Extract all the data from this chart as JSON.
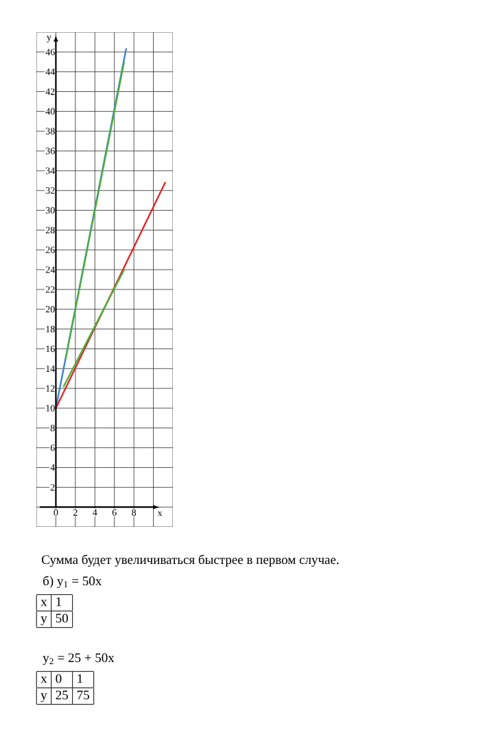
{
  "chart_data": {
    "type": "line",
    "xlabel": "x",
    "ylabel": "y",
    "xlim": [
      -2,
      12
    ],
    "ylim": [
      -2,
      48
    ],
    "xticks": [
      0,
      2,
      4,
      6,
      8,
      {
        "value": 10,
        "label": null
      }
    ],
    "yticks": [
      {
        "value": 0,
        "label": null
      },
      2,
      4,
      6,
      8,
      10,
      12,
      14,
      16,
      18,
      20,
      22,
      24,
      26,
      28,
      30,
      32,
      34,
      36,
      38,
      40,
      42,
      44,
      46
    ],
    "grid": true,
    "marker": "none",
    "line_style": "solid",
    "series": [
      {
        "color": "#3b82d6",
        "x": [
          0,
          7.2
        ],
        "values": [
          10,
          46.3
        ]
      },
      {
        "color": "#e32626",
        "x": [
          0,
          11.2
        ],
        "values": [
          10,
          32.8
        ]
      },
      {
        "color": "#4caf3f",
        "x": [
          1,
          7
        ],
        "values": [
          15,
          45
        ]
      },
      {
        "color": "#4caf3f",
        "x": [
          0.8,
          7
        ],
        "values": [
          12.2,
          24
        ]
      }
    ],
    "annotations": [
      "Сумма будет увеличиваться быстрее в первом случае.",
      "б) y$_{1}$ = 50x",
      "x",
      "1",
      "y",
      "50",
      "y$_{2}$ = 25 + 50x",
      "x",
      "0",
      "1",
      "y",
      "25",
      "75"
    ]
  }
}
